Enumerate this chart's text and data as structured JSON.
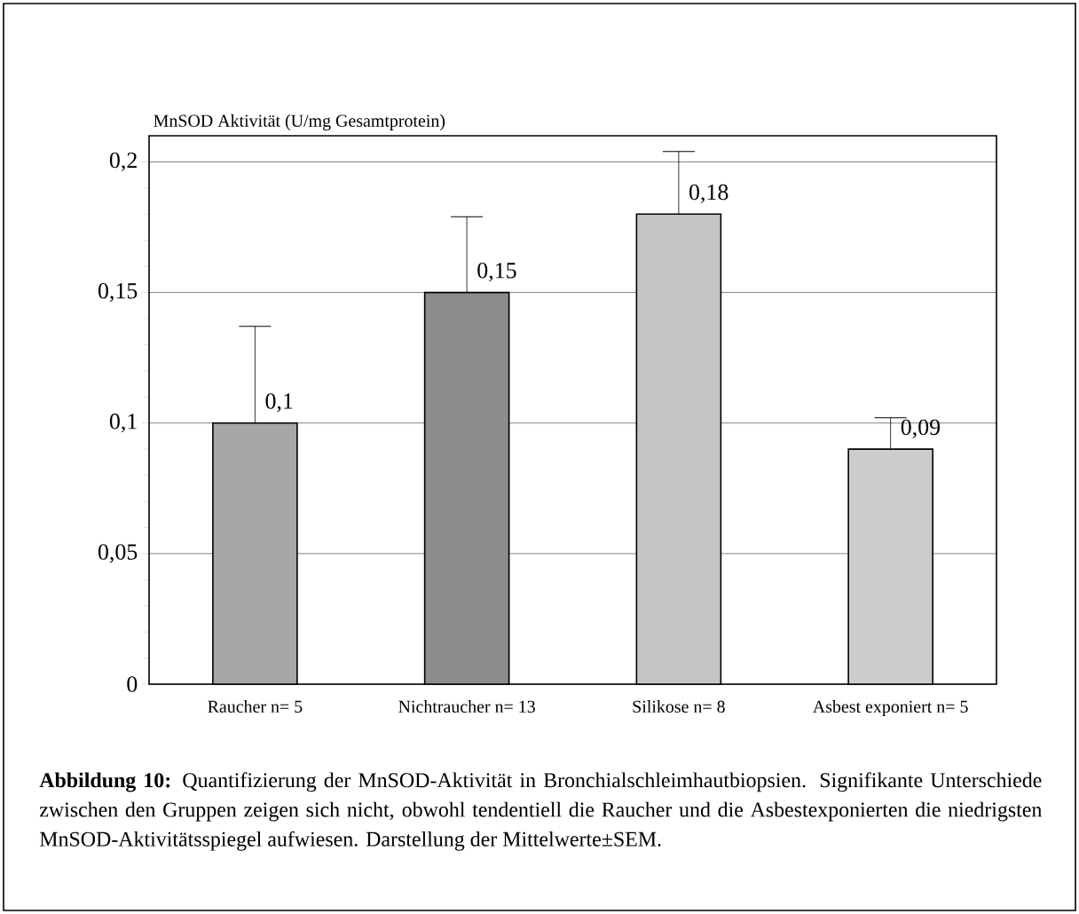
{
  "chart_data": {
    "type": "bar",
    "ylabel": "MnSOD Aktivität (U/mg Gesamtprotein)",
    "categories": [
      "Raucher n= 5",
      "Nichtraucher n= 13",
      "Silikose n= 8",
      "Asbest exponiert n= 5"
    ],
    "values": [
      0.1,
      0.15,
      0.18,
      0.09
    ],
    "errors": [
      [
        0.1,
        0.137
      ],
      [
        0.15,
        0.179
      ],
      [
        0.18,
        0.204
      ],
      [
        0.09,
        0.102
      ]
    ],
    "value_labels": [
      "0,1",
      "0,15",
      "0,18",
      "0,09"
    ],
    "colors": [
      "#a6a6a6",
      "#8c8c8c",
      "#c4c4c4",
      "#cccccc"
    ],
    "ylim": [
      0,
      0.21
    ],
    "yticks": [
      {
        "value": 0,
        "label": "0"
      },
      {
        "value": 0.05,
        "label": "0,05"
      },
      {
        "value": 0.1,
        "label": "0,1"
      },
      {
        "value": 0.15,
        "label": "0,15"
      },
      {
        "value": 0.2,
        "label": "0,2"
      }
    ],
    "grid": "y",
    "annotations": [
      "**Abbildung 10:** Quantifizierung der MnSOD-Aktivität in Bronchialschleimhautbiopsien. Signifikante Unterschiede zwischen den Gruppen zeigen sich nicht, obwohl tendentiell die Raucher und die Asbestexponierten die niedrigsten MnSOD-Aktivitätsspiegel aufwiesen. Darstellung der Mittelwerte±SEM."
    ]
  }
}
